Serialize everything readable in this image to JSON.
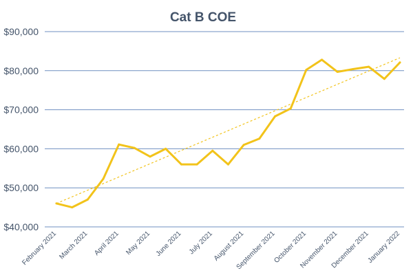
{
  "chart_data": {
    "type": "line",
    "title": "Cat B COE",
    "xlabel": "",
    "ylabel": "",
    "ylim": [
      40000,
      90000
    ],
    "yticks": [
      {
        "value": 40000,
        "label": "$40,000"
      },
      {
        "value": 50000,
        "label": "$50,000"
      },
      {
        "value": 60000,
        "label": "$60,000"
      },
      {
        "value": 70000,
        "label": "$70,000"
      },
      {
        "value": 80000,
        "label": "$80,000"
      },
      {
        "value": 90000,
        "label": "$90,000"
      }
    ],
    "grid": true,
    "legend": "none",
    "line_color": "#f2c31a",
    "grid_color": "#6f8fc0",
    "x": [
      "February 2021",
      "",
      "March 2021",
      "",
      "April 2021",
      "",
      "May 2021",
      "",
      "June 2021",
      "",
      "July 2021",
      "",
      "August 2021",
      "",
      "September 2021",
      "",
      "October 2021",
      "",
      "November 2021",
      "",
      "December 2021",
      "",
      "January 2022"
    ],
    "series": [
      {
        "values": [
          46000,
          45000,
          47000,
          52300,
          61100,
          60200,
          58000,
          60000,
          56000,
          56000,
          59500,
          56000,
          61000,
          62600,
          68300,
          70300,
          80200,
          82800,
          79700,
          80400,
          81000,
          77900,
          82100
        ],
        "color": "#f2c31a"
      }
    ],
    "trendline": {
      "type": "linear",
      "style": "dashed",
      "from": 46000,
      "to": 83300
    }
  }
}
